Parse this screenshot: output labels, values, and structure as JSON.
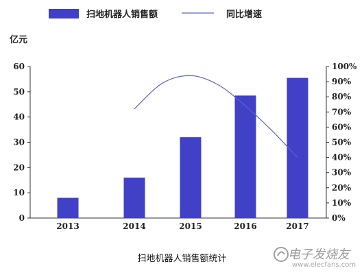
{
  "chart_data": {
    "type": "bar",
    "title": "",
    "categories": [
      "2013",
      "2014",
      "2015",
      "2016",
      "2017"
    ],
    "series": [
      {
        "name": "扫地机器人销售额",
        "kind": "bar",
        "axis": "left",
        "color": "#4141c7",
        "values": [
          8,
          16,
          32,
          48.5,
          55.5
        ]
      },
      {
        "name": "同比增速",
        "kind": "line",
        "axis": "right",
        "color": "#5a63c7",
        "x": [
          "2014",
          "2014.5",
          "2015",
          "2015.5",
          "2016",
          "2016.5",
          "2017"
        ],
        "values": [
          72,
          89,
          94,
          88,
          74,
          58,
          40
        ]
      }
    ],
    "y_left": {
      "label": "亿元",
      "ylim": [
        0,
        60
      ],
      "ticks": [
        "0",
        "10",
        "20",
        "30",
        "40",
        "50",
        "60"
      ]
    },
    "y_right": {
      "ylim": [
        0,
        100
      ],
      "ticks": [
        "0%",
        "10%",
        "20%",
        "30%",
        "40%",
        "50%",
        "60%",
        "70%",
        "80%",
        "90%",
        "100%"
      ]
    },
    "grid": false,
    "legend_position": "top"
  },
  "caption": "扫地机器人销售额统计",
  "watermark": {
    "text": "电子发烧友",
    "sub": "www.elecfans.com"
  }
}
